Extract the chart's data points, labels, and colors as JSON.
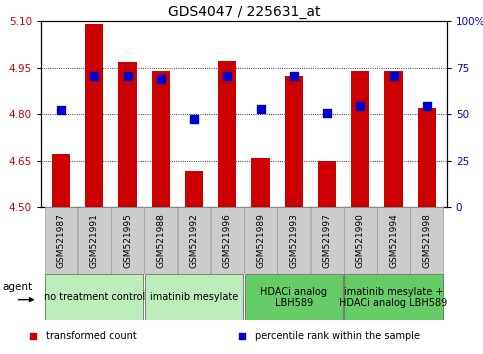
{
  "title": "GDS4047 / 225631_at",
  "samples": [
    "GSM521987",
    "GSM521991",
    "GSM521995",
    "GSM521988",
    "GSM521992",
    "GSM521996",
    "GSM521989",
    "GSM521993",
    "GSM521997",
    "GSM521990",
    "GSM521994",
    "GSM521998"
  ],
  "bar_values": [
    4.672,
    5.092,
    4.968,
    4.938,
    4.615,
    4.972,
    4.66,
    4.922,
    4.648,
    4.938,
    4.938,
    4.82
  ],
  "dot_values": [
    4.813,
    4.922,
    4.922,
    4.913,
    4.786,
    4.922,
    4.817,
    4.922,
    4.803,
    4.826,
    4.922,
    4.826
  ],
  "ymin": 4.5,
  "ymax": 5.1,
  "yticks_left": [
    4.5,
    4.65,
    4.8,
    4.95,
    5.1
  ],
  "yticks_right": [
    0,
    25,
    50,
    75,
    100
  ],
  "bar_color": "#cc0000",
  "dot_color": "#0000cc",
  "groups": [
    {
      "label": "no treatment control",
      "start": 0,
      "end": 3,
      "color": "#bbeebb"
    },
    {
      "label": "imatinib mesylate",
      "start": 3,
      "end": 6,
      "color": "#bbeebb"
    },
    {
      "label": "HDACi analog\nLBH589",
      "start": 6,
      "end": 9,
      "color": "#66cc66"
    },
    {
      "label": "imatinib mesylate +\nHDACi analog LBH589",
      "start": 9,
      "end": 12,
      "color": "#66cc66"
    }
  ],
  "agent_label": "agent",
  "legend_items": [
    {
      "label": "transformed count",
      "color": "#cc0000"
    },
    {
      "label": "percentile rank within the sample",
      "color": "#0000cc"
    }
  ],
  "bar_width": 0.55,
  "dot_size": 28,
  "axis_color_left": "#cc0000",
  "axis_color_right": "#0000cc",
  "title_fontsize": 10,
  "tick_fontsize": 7.5,
  "sample_fontsize": 6.5,
  "group_fontsize": 7.0,
  "legend_fontsize": 7.0
}
